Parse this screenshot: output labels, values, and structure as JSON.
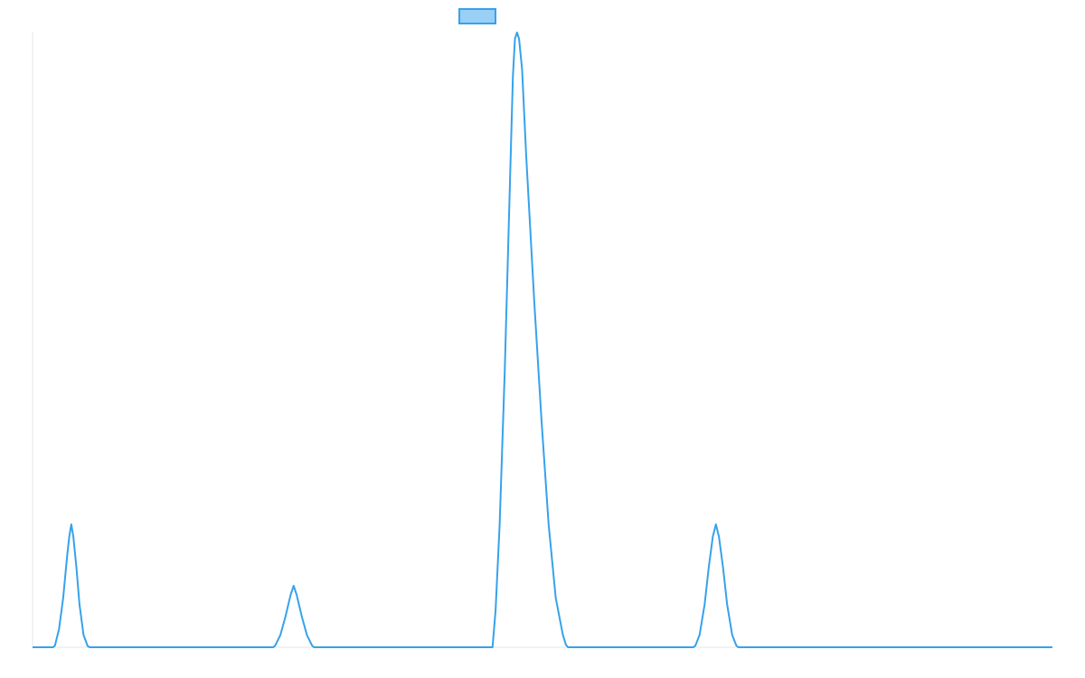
{
  "colors": {
    "series_line": "#36a2eb",
    "series_fill": "#9ad0f5",
    "axis": "#e6e6e6",
    "background": "#ffffff"
  },
  "chart_data": {
    "type": "line",
    "title": "",
    "xlabel": "",
    "ylabel": "",
    "grid": false,
    "legend": "top-center",
    "xlim": [
      0,
      100
    ],
    "ylim": [
      0,
      100
    ],
    "series": [
      {
        "name": "",
        "points": [
          [
            0,
            0
          ],
          [
            2,
            0
          ],
          [
            2.2,
            0.3
          ],
          [
            2.6,
            3
          ],
          [
            3.0,
            8
          ],
          [
            3.4,
            15
          ],
          [
            3.6,
            18
          ],
          [
            3.8,
            20
          ],
          [
            4.0,
            18
          ],
          [
            4.3,
            13
          ],
          [
            4.6,
            7
          ],
          [
            5.0,
            2
          ],
          [
            5.4,
            0.2
          ],
          [
            5.6,
            0
          ],
          [
            23.6,
            0
          ],
          [
            23.8,
            0.3
          ],
          [
            24.3,
            2
          ],
          [
            24.8,
            5
          ],
          [
            25.3,
            8.5
          ],
          [
            25.6,
            10
          ],
          [
            25.9,
            8.5
          ],
          [
            26.4,
            5
          ],
          [
            26.9,
            2
          ],
          [
            27.4,
            0.3
          ],
          [
            27.6,
            0
          ],
          [
            45.1,
            0
          ],
          [
            45.4,
            6
          ],
          [
            45.8,
            20
          ],
          [
            46.3,
            45
          ],
          [
            46.8,
            75
          ],
          [
            47.1,
            93
          ],
          [
            47.3,
            99
          ],
          [
            47.5,
            100
          ],
          [
            47.7,
            99
          ],
          [
            48.0,
            94
          ],
          [
            48.4,
            80
          ],
          [
            49.2,
            56
          ],
          [
            49.9,
            37
          ],
          [
            50.6,
            20
          ],
          [
            51.3,
            8
          ],
          [
            52.0,
            2
          ],
          [
            52.3,
            0.4
          ],
          [
            52.5,
            0
          ],
          [
            64.8,
            0
          ],
          [
            65.0,
            0.3
          ],
          [
            65.4,
            2
          ],
          [
            65.9,
            7
          ],
          [
            66.3,
            13
          ],
          [
            66.7,
            18
          ],
          [
            67.0,
            20
          ],
          [
            67.3,
            18
          ],
          [
            67.7,
            13
          ],
          [
            68.1,
            7
          ],
          [
            68.6,
            2
          ],
          [
            69.0,
            0.3
          ],
          [
            69.2,
            0
          ],
          [
            100,
            0
          ]
        ]
      }
    ]
  }
}
